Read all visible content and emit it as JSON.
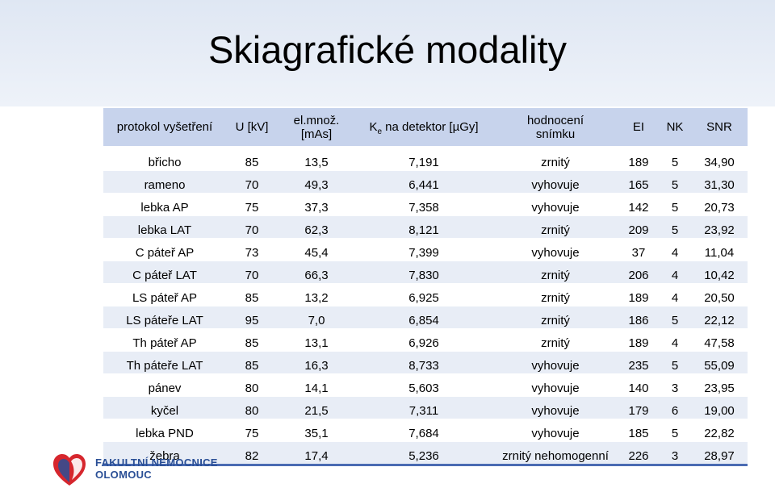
{
  "title": "Skiagrafické modality",
  "headers": {
    "protocol": "protokol vyšetření",
    "voltage": "U [kV]",
    "mas": "el.množ. [mAs]",
    "ke_prefix": "K",
    "ke_sub": "e",
    "ke_suffix": " na detektor [µGy]",
    "eval_line1": "hodnocení",
    "eval_line2": "snímku",
    "ei": "EI",
    "nk": "NK",
    "snr": "SNR"
  },
  "rows": [
    {
      "protocol": "břicho",
      "u": "85",
      "mas": "13,5",
      "ke": "7,191",
      "eval": "zrnitý",
      "ei": "189",
      "nk": "5",
      "snr": "34,90"
    },
    {
      "protocol": "rameno",
      "u": "70",
      "mas": "49,3",
      "ke": "6,441",
      "eval": "vyhovuje",
      "ei": "165",
      "nk": "5",
      "snr": "31,30"
    },
    {
      "protocol": "lebka AP",
      "u": "75",
      "mas": "37,3",
      "ke": "7,358",
      "eval": "vyhovuje",
      "ei": "142",
      "nk": "5",
      "snr": "20,73"
    },
    {
      "protocol": "lebka LAT",
      "u": "70",
      "mas": "62,3",
      "ke": "8,121",
      "eval": "zrnitý",
      "ei": "209",
      "nk": "5",
      "snr": "23,92"
    },
    {
      "protocol": "C páteř AP",
      "u": "73",
      "mas": "45,4",
      "ke": "7,399",
      "eval": "vyhovuje",
      "ei": "37",
      "nk": "4",
      "snr": "11,04"
    },
    {
      "protocol": "C páteř  LAT",
      "u": "70",
      "mas": "66,3",
      "ke": "7,830",
      "eval": "zrnitý",
      "ei": "206",
      "nk": "4",
      "snr": "10,42"
    },
    {
      "protocol": "LS páteř AP",
      "u": "85",
      "mas": "13,2",
      "ke": "6,925",
      "eval": "zrnitý",
      "ei": "189",
      "nk": "4",
      "snr": "20,50"
    },
    {
      "protocol": "LS páteře LAT",
      "u": "95",
      "mas": "7,0",
      "ke": "6,854",
      "eval": "zrnitý",
      "ei": "186",
      "nk": "5",
      "snr": "22,12"
    },
    {
      "protocol": "Th páteř AP",
      "u": "85",
      "mas": "13,1",
      "ke": "6,926",
      "eval": "zrnitý",
      "ei": "189",
      "nk": "4",
      "snr": "47,58"
    },
    {
      "protocol": "Th páteře LAT",
      "u": "85",
      "mas": "16,3",
      "ke": "8,733",
      "eval": "vyhovuje",
      "ei": "235",
      "nk": "5",
      "snr": "55,09"
    },
    {
      "protocol": "pánev",
      "u": "80",
      "mas": "14,1",
      "ke": "5,603",
      "eval": "vyhovuje",
      "ei": "140",
      "nk": "3",
      "snr": "23,95"
    },
    {
      "protocol": "kyčel",
      "u": "80",
      "mas": "21,5",
      "ke": "7,311",
      "eval": "vyhovuje",
      "ei": "179",
      "nk": "6",
      "snr": "19,00"
    },
    {
      "protocol": "lebka PND",
      "u": "75",
      "mas": "35,1",
      "ke": "7,684",
      "eval": "vyhovuje",
      "ei": "185",
      "nk": "5",
      "snr": "22,82"
    },
    {
      "protocol": "žebra",
      "u": "82",
      "mas": "17,4",
      "ke": "5,236",
      "eval": "zrnitý nehomogenní",
      "ei": "226",
      "nk": "3",
      "snr": "28,97"
    }
  ],
  "logo": {
    "line1": "FAKULTNÍ NEMOCNICE",
    "line2": "OLOMOUC"
  },
  "colors": {
    "header_bg": "#c7d3ec",
    "stripe_bg": "#e8edf6",
    "accent": "#4a6bb3",
    "logo_red": "#d6262d",
    "logo_blue": "#2a4f96"
  }
}
